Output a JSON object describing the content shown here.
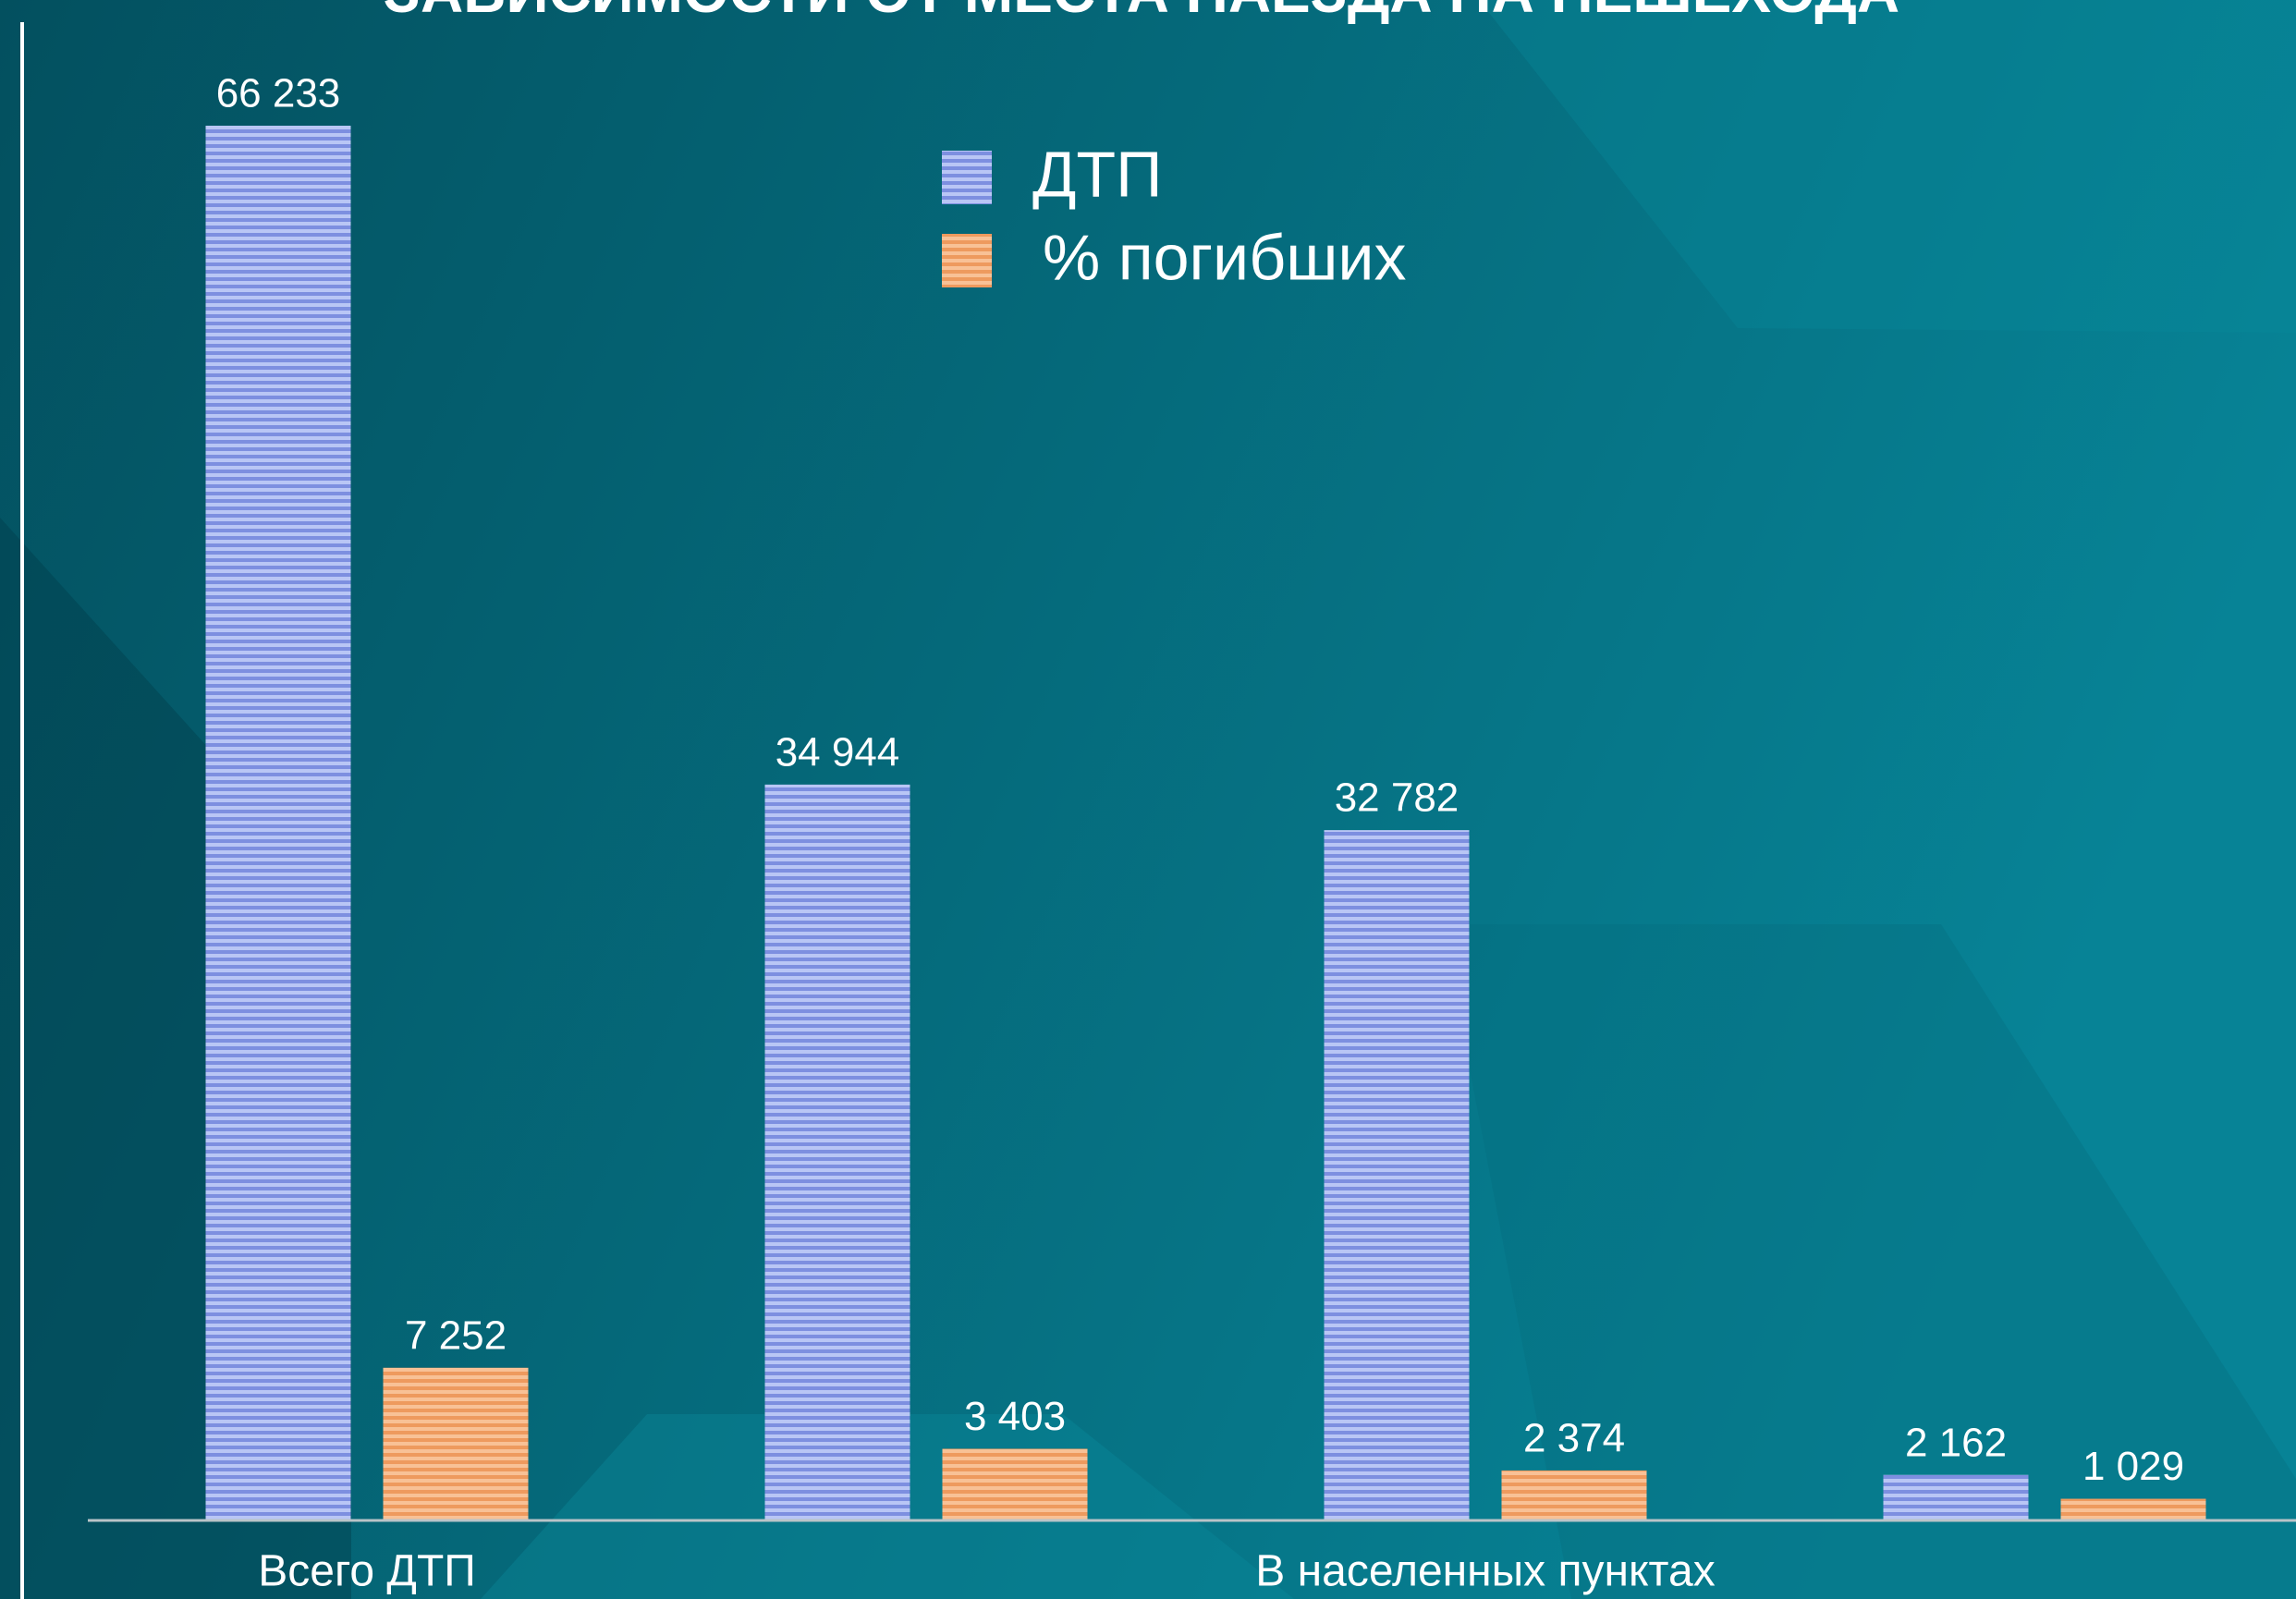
{
  "chart_data": {
    "type": "bar",
    "title": "ЗАВИСИМОСТИ ОТ МЕСТА НАЕЗДА НА ПЕШЕХОДА",
    "categories": [
      "Всего ДТП",
      null,
      "В населенных пунктах",
      null
    ],
    "series": [
      {
        "name": "ДТП",
        "color": "#9fb0ee",
        "values": [
          66233,
          34944,
          32782,
          2162
        ],
        "value_labels": [
          "66 233",
          "34 944",
          "32 782",
          "2 162"
        ]
      },
      {
        "name": "% погибших",
        "color": "#f4ad78",
        "values": [
          7252,
          3403,
          2374,
          1029
        ],
        "value_labels": [
          "7 252",
          "3 403",
          "2 374",
          "1 029"
        ]
      }
    ],
    "legend": "top"
  }
}
